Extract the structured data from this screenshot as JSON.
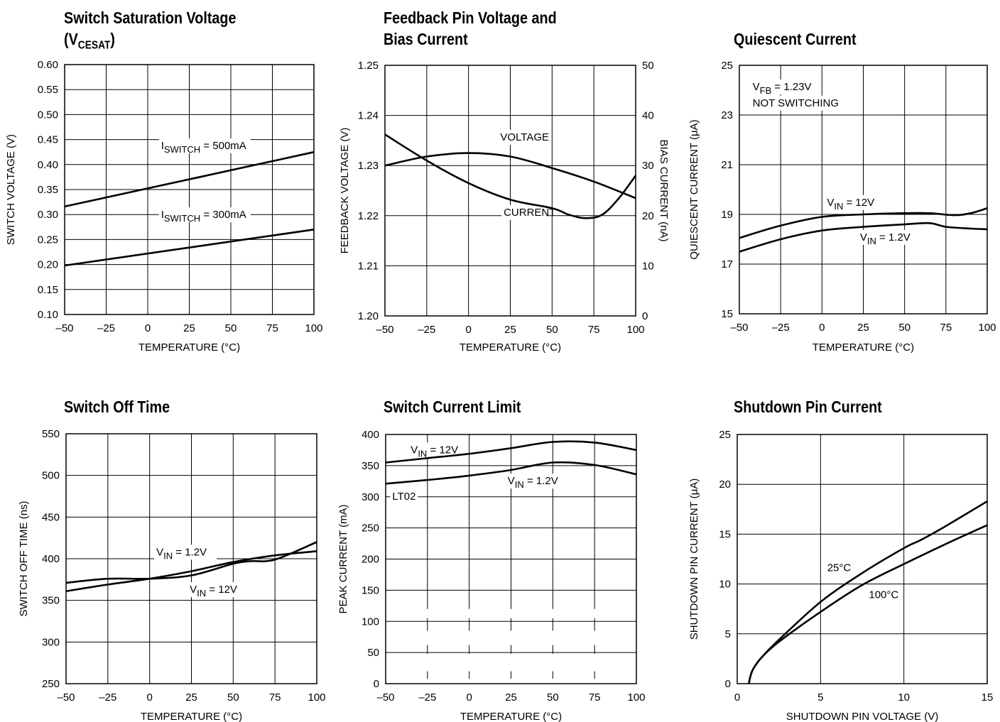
{
  "chart_data": [
    {
      "id": "c1",
      "type": "line",
      "title": [
        "Switch Saturation Voltage",
        "(V{CESAT})"
      ],
      "xlabel": "TEMPERATURE (°C)",
      "ylabel": "SWITCH VOLTAGE (V)",
      "xlim": [
        -50,
        100
      ],
      "ylim": [
        0.1,
        0.6
      ],
      "xticks": [
        -50,
        -25,
        0,
        25,
        50,
        75,
        100
      ],
      "xtick_labels": [
        "–50",
        "–25",
        "0",
        "25",
        "50",
        "75",
        "100"
      ],
      "yticks": [
        0.1,
        0.15,
        0.2,
        0.25,
        0.3,
        0.35,
        0.4,
        0.45,
        0.5,
        0.55,
        0.6
      ],
      "ytick_labels": [
        "0.10",
        "0.15",
        "0.20",
        "0.25",
        "0.30",
        "0.35",
        "0.40",
        "0.45",
        "0.50",
        "0.55",
        "0.60"
      ],
      "grid": true,
      "series": [
        {
          "name": "I{SWITCH} = 500mA",
          "x": [
            -50,
            100
          ],
          "y": [
            0.316,
            0.425
          ]
        },
        {
          "name": "I{SWITCH} = 300mA",
          "x": [
            -50,
            100
          ],
          "y": [
            0.198,
            0.27
          ]
        }
      ],
      "annotations": [
        {
          "text": "I{SWITCH} = 500mA",
          "x": 8,
          "y": 0.431
        },
        {
          "text": "I{SWITCH} = 300mA",
          "x": 8,
          "y": 0.293
        }
      ]
    },
    {
      "id": "c2",
      "type": "line",
      "title": [
        "Feedback Pin Voltage and",
        "Bias Current"
      ],
      "xlabel": "TEMPERATURE (°C)",
      "ylabel": "FEEDBACK VOLTAGE (V)",
      "y2label": "BIAS CURRENT (nA)",
      "xlim": [
        -50,
        100
      ],
      "ylim": [
        1.2,
        1.25
      ],
      "y2lim": [
        0,
        50
      ],
      "xticks": [
        -50,
        -25,
        0,
        25,
        50,
        75,
        100
      ],
      "xtick_labels": [
        "–50",
        "–25",
        "0",
        "25",
        "50",
        "75",
        "100"
      ],
      "yticks": [
        1.2,
        1.21,
        1.22,
        1.23,
        1.24,
        1.25
      ],
      "ytick_labels": [
        "1.20",
        "1.21",
        "1.22",
        "1.23",
        "1.24",
        "1.25"
      ],
      "y2ticks": [
        0,
        10,
        20,
        30,
        40,
        50
      ],
      "y2tick_labels": [
        "0",
        "10",
        "20",
        "30",
        "40",
        "50"
      ],
      "grid": true,
      "series": [
        {
          "name": "VOLTAGE",
          "axis": "y",
          "x": [
            -50,
            -25,
            0,
            25,
            50,
            75,
            100
          ],
          "y": [
            1.23,
            1.2318,
            1.2325,
            1.2318,
            1.2295,
            1.2268,
            1.2235
          ]
        },
        {
          "name": "CURRENT",
          "axis": "y2",
          "x": [
            -50,
            -25,
            0,
            25,
            50,
            60,
            70,
            80,
            90,
            100
          ],
          "y": [
            36.2,
            31.0,
            26.5,
            23.2,
            21.5,
            20.2,
            19.5,
            20.2,
            23.5,
            28.0
          ]
        }
      ],
      "annotations": [
        {
          "text": "VOLTAGE",
          "x": 19,
          "y": 1.235
        },
        {
          "text": "CURRENT",
          "x": 21,
          "y": 1.22
        }
      ]
    },
    {
      "id": "c3",
      "type": "line",
      "title": [
        "Quiescent Current"
      ],
      "xlabel": "TEMPERATURE (°C)",
      "ylabel": "QUIESCENT CURRENT (μA)",
      "xlim": [
        -50,
        100
      ],
      "ylim": [
        15,
        25
      ],
      "xticks": [
        -50,
        -25,
        0,
        25,
        50,
        75,
        100
      ],
      "xtick_labels": [
        "–50",
        "–25",
        "0",
        "25",
        "50",
        "75",
        "100"
      ],
      "yticks": [
        15,
        17,
        19,
        21,
        23,
        25
      ],
      "ytick_labels": [
        "15",
        "17",
        "19",
        "21",
        "23",
        "25"
      ],
      "grid": true,
      "series": [
        {
          "name": "V{IN} = 12V",
          "x": [
            -50,
            -25,
            0,
            25,
            50,
            65,
            80,
            90,
            100
          ],
          "y": [
            18.05,
            18.55,
            18.9,
            19.0,
            19.05,
            19.05,
            18.97,
            19.05,
            19.25
          ]
        },
        {
          "name": "V{IN} = 1.2V",
          "x": [
            -50,
            -25,
            0,
            25,
            50,
            65,
            75,
            90,
            100
          ],
          "y": [
            17.5,
            18.0,
            18.35,
            18.5,
            18.6,
            18.65,
            18.5,
            18.43,
            18.4
          ]
        }
      ],
      "annotations": [
        {
          "text": "V{FB} = 1.23V",
          "x": -42,
          "y": 24.0
        },
        {
          "text": "NOT SWITCHING",
          "x": -42,
          "y": 23.35
        },
        {
          "text": "V{IN} = 12V",
          "x": 3,
          "y": 19.35
        },
        {
          "text": "V{IN} = 1.2V",
          "x": 23,
          "y": 17.95
        }
      ]
    },
    {
      "id": "c4",
      "type": "line",
      "title": [
        "Switch Off Time"
      ],
      "xlabel": "TEMPERATURE (°C)",
      "ylabel": "SWITCH OFF TIME (ns)",
      "xlim": [
        -50,
        100
      ],
      "ylim": [
        250,
        550
      ],
      "xticks": [
        -50,
        -25,
        0,
        25,
        50,
        75,
        100
      ],
      "xtick_labels": [
        "–50",
        "–25",
        "0",
        "25",
        "50",
        "75",
        "100"
      ],
      "yticks": [
        250,
        300,
        350,
        400,
        450,
        500,
        550
      ],
      "ytick_labels": [
        "250",
        "300",
        "350",
        "400",
        "450",
        "500",
        "550"
      ],
      "grid": true,
      "series": [
        {
          "name": "V{IN} = 1.2V",
          "x": [
            -50,
            -25,
            0,
            25,
            50,
            75,
            100
          ],
          "y": [
            361,
            369,
            376,
            385,
            396,
            404,
            409
          ]
        },
        {
          "name": "V{IN} = 12V",
          "x": [
            -50,
            -25,
            0,
            25,
            50,
            60,
            75,
            100
          ],
          "y": [
            371,
            376,
            376,
            380,
            394,
            397,
            399,
            420
          ]
        }
      ],
      "annotations": [
        {
          "text": "V{IN} = 1.2V",
          "x": 4,
          "y": 404
        },
        {
          "text": "V{IN} = 12V",
          "x": 24,
          "y": 359
        }
      ]
    },
    {
      "id": "c5",
      "type": "line",
      "title": [
        "Switch Current Limit"
      ],
      "xlabel": "TEMPERATURE (°C)",
      "ylabel": "PEAK CURRENT (mA)",
      "xlim": [
        -50,
        100
      ],
      "ylim": [
        0,
        400
      ],
      "xticks": [
        -50,
        -25,
        0,
        25,
        50,
        75,
        100
      ],
      "xtick_labels": [
        "–50",
        "–25",
        "0",
        "25",
        "50",
        "75",
        "100"
      ],
      "yticks": [
        0,
        50,
        100,
        150,
        200,
        250,
        300,
        350,
        400
      ],
      "ytick_labels": [
        "0",
        "50",
        "100",
        "150",
        "200",
        "250",
        "300",
        "350",
        "400"
      ],
      "grid": true,
      "series": [
        {
          "name": "V{IN} = 12V",
          "x": [
            -50,
            -25,
            0,
            25,
            50,
            75,
            100
          ],
          "y": [
            355,
            362,
            369,
            378,
            388,
            387,
            375
          ]
        },
        {
          "name": "V{IN} = 1.2V",
          "x": [
            -50,
            -25,
            0,
            25,
            50,
            75,
            100
          ],
          "y": [
            321,
            327,
            334,
            343,
            355,
            351,
            336
          ]
        }
      ],
      "annotations": [
        {
          "text": "V{IN} = 12V",
          "x": -35,
          "y": 370
        },
        {
          "text": "V{IN} = 1.2V",
          "x": 23,
          "y": 320
        },
        {
          "text": "LT02",
          "x": -46,
          "y": 295
        }
      ]
    },
    {
      "id": "c6",
      "type": "line",
      "title": [
        "Shutdown Pin Current"
      ],
      "xlabel": "SHUTDOWN PIN VOLTAGE (V)",
      "ylabel": "SHUTDOWN PIN CURRENT (μA)",
      "xlim": [
        0,
        15
      ],
      "ylim": [
        0,
        25
      ],
      "xticks": [
        0,
        5,
        10,
        15
      ],
      "xtick_labels": [
        "0",
        "5",
        "10",
        "15"
      ],
      "yticks": [
        0,
        5,
        10,
        15,
        20,
        25
      ],
      "ytick_labels": [
        "0",
        "5",
        "10",
        "15",
        "20",
        "25"
      ],
      "grid": true,
      "series": [
        {
          "name": "25°C",
          "x": [
            0.7,
            0.8,
            1.0,
            1.5,
            2.5,
            5,
            7.5,
            10,
            11,
            12.5,
            15
          ],
          "y": [
            0,
            0.8,
            1.6,
            2.7,
            4.4,
            8.2,
            11.1,
            13.6,
            14.4,
            15.8,
            18.3
          ]
        },
        {
          "name": "100°C",
          "x": [
            0.7,
            0.8,
            1.0,
            1.5,
            2.5,
            5,
            7.5,
            10,
            12.5,
            15
          ],
          "y": [
            0,
            0.8,
            1.6,
            2.7,
            4.2,
            7.2,
            9.9,
            12.0,
            14.0,
            15.9
          ]
        }
      ],
      "annotations": [
        {
          "text": "25°C",
          "x": 5.4,
          "y": 11.3
        },
        {
          "text": "100°C",
          "x": 7.9,
          "y": 8.6
        }
      ]
    }
  ]
}
